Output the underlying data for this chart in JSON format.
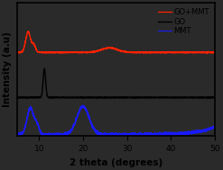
{
  "title": "",
  "xlabel": "2 theta (degrees)",
  "ylabel": "Intensity (a.u)",
  "xlim": [
    5,
    50
  ],
  "xticks": [
    10,
    20,
    30,
    40,
    50
  ],
  "background_color": "#2a2a2a",
  "plot_bg_color": "#2a2a2a",
  "legend_entries": [
    "GO+MMT",
    "GO",
    "MMT"
  ],
  "line_colors": [
    "#ff2200",
    "#000000",
    "#1a1aff"
  ],
  "offsets": [
    1.55,
    0.72,
    0.0
  ],
  "xlabel_fontsize": 7.5,
  "ylabel_fontsize": 7.5,
  "legend_fontsize": 6.0,
  "tick_fontsize": 6.5
}
